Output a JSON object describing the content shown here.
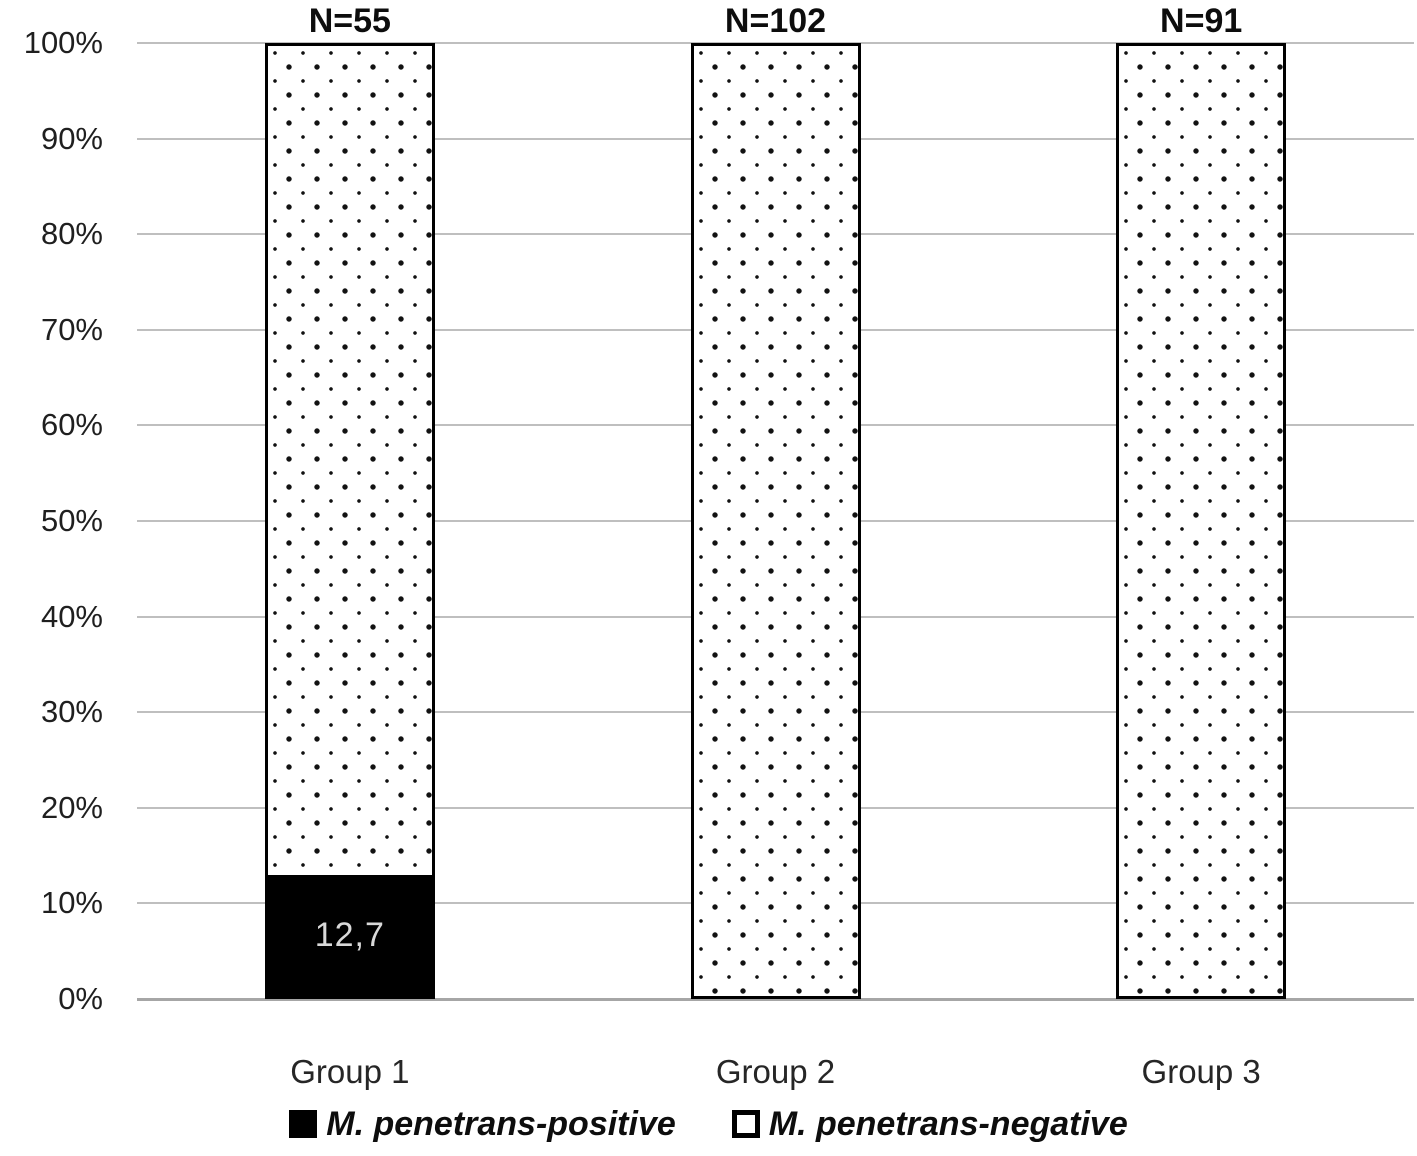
{
  "chart_data": {
    "type": "bar",
    "subtype": "stacked-percent",
    "title": "",
    "xlabel": "",
    "ylabel": "",
    "categories": [
      "Group 1",
      "Group 2",
      "Group 3"
    ],
    "bar_counts": [
      "N=55",
      "N=102",
      "N=91"
    ],
    "series": [
      {
        "name": "M. penetrans-positive",
        "swatch": "solid-black",
        "values": [
          12.7,
          0,
          0
        ],
        "data_labels": [
          "12,7",
          "",
          ""
        ]
      },
      {
        "name": "M. penetrans-negative",
        "swatch": "dotted-white",
        "values": [
          87.3,
          100,
          100
        ],
        "data_labels": [
          "",
          "",
          ""
        ]
      }
    ],
    "y_axis": {
      "min": 0,
      "max": 100,
      "ticks": [
        "100%",
        "90%",
        "80%",
        "70%",
        "60%",
        "50%",
        "40%",
        "30%",
        "20%",
        "10%",
        "0%"
      ]
    },
    "grid": true,
    "legend_position": "bottom",
    "colors": {
      "series_positive": "#000000",
      "series_negative_fill": "#ffffff",
      "pattern_dot": "#111111",
      "gridline": "#bfbfbf",
      "baseline": "#a6a6a6",
      "axis_text": "#1f1f1f",
      "inside_label": "#d9d9d9",
      "bar_border": "#000000"
    }
  }
}
